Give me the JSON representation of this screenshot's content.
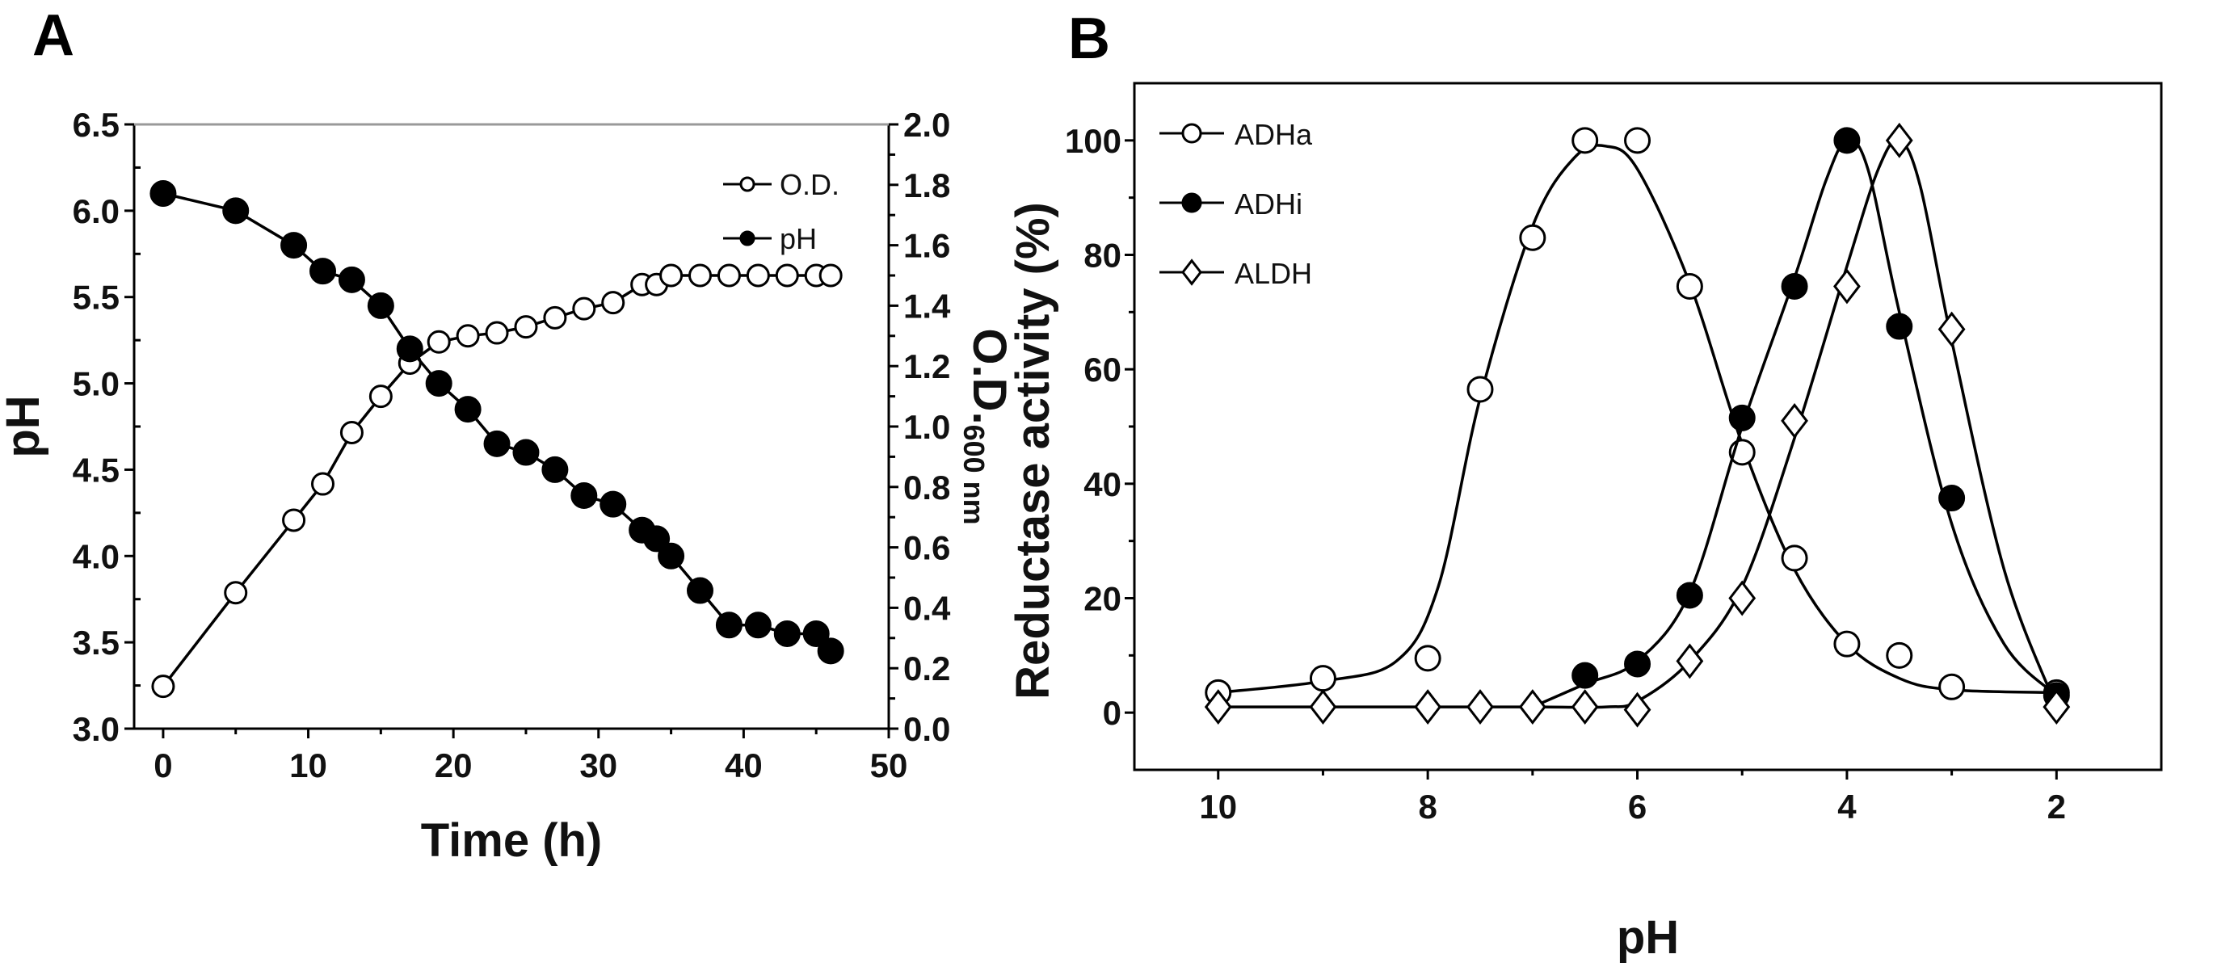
{
  "chart_data": [
    {
      "panel_label": "A",
      "type": "line",
      "xlabel": "Time (h)",
      "ylabel": "pH",
      "y2label": "O.D.",
      "y2label_sub": "600 nm",
      "xlim": [
        -2,
        50
      ],
      "ylim": [
        3.0,
        6.5
      ],
      "y2lim": [
        0.0,
        2.0
      ],
      "xticks": [
        "0",
        "10",
        "20",
        "30",
        "40",
        "50"
      ],
      "yticks": [
        "3.0",
        "3.5",
        "4.0",
        "4.5",
        "5.0",
        "5.5",
        "6.0",
        "6.5"
      ],
      "y2ticks": [
        "0.0",
        "0.2",
        "0.4",
        "0.6",
        "0.8",
        "1.0",
        "1.2",
        "1.4",
        "1.6",
        "1.8",
        "2.0"
      ],
      "legend_position": "top-right",
      "series": [
        {
          "name": "O.D.",
          "axis": "right",
          "marker": "open-circle",
          "x": [
            0,
            5,
            9,
            11,
            13,
            15,
            17,
            19,
            21,
            23,
            25,
            27,
            29,
            31,
            33,
            34,
            35,
            37,
            39,
            41,
            43,
            45,
            46
          ],
          "y": [
            0.14,
            0.45,
            0.69,
            0.81,
            0.98,
            1.1,
            1.21,
            1.28,
            1.3,
            1.31,
            1.33,
            1.36,
            1.39,
            1.41,
            1.47,
            1.47,
            1.5,
            1.5,
            1.5,
            1.5,
            1.5,
            1.5,
            1.5
          ]
        },
        {
          "name": "pH",
          "axis": "left",
          "marker": "filled-circle",
          "x": [
            0,
            5,
            9,
            11,
            13,
            15,
            17,
            19,
            21,
            23,
            25,
            27,
            29,
            31,
            33,
            34,
            35,
            37,
            39,
            41,
            43,
            45,
            46
          ],
          "y": [
            6.1,
            6.0,
            5.8,
            5.65,
            5.6,
            5.45,
            5.2,
            5.0,
            4.85,
            4.65,
            4.6,
            4.5,
            4.35,
            4.3,
            4.15,
            4.1,
            4.0,
            3.8,
            3.6,
            3.6,
            3.55,
            3.55,
            3.45
          ]
        }
      ]
    },
    {
      "panel_label": "B",
      "type": "line",
      "xlabel": "pH",
      "ylabel": "Reductase activity (%)",
      "xlim": [
        10.8,
        1.0
      ],
      "ylim": [
        -10,
        110
      ],
      "xticks": [
        "10",
        "8",
        "6",
        "4",
        "2"
      ],
      "yticks": [
        "0",
        "20",
        "40",
        "60",
        "80",
        "100"
      ],
      "legend_position": "top-left",
      "series": [
        {
          "name": "ADHa",
          "marker": "open-circle",
          "x": [
            10,
            9,
            8,
            7.5,
            7,
            6.5,
            6,
            5.5,
            5,
            4.5,
            4,
            3.5,
            3,
            2
          ],
          "y": [
            3.5,
            6,
            9.5,
            56.5,
            83,
            100,
            100,
            74.5,
            45.5,
            27,
            12,
            10,
            4.5,
            3.5
          ],
          "fit_x": [
            10,
            9,
            8.3,
            7.9,
            7.5,
            7.0,
            6.6,
            6.3,
            6.0,
            5.5,
            5.0,
            4.5,
            4.0,
            3.5,
            3.0,
            2.0
          ],
          "fit_y": [
            3.5,
            5.5,
            9,
            22,
            55,
            85,
            97,
            99,
            95,
            75,
            47,
            25,
            12,
            6,
            4,
            3.5
          ]
        },
        {
          "name": "ADHi",
          "marker": "filled-circle",
          "x": [
            6.5,
            6,
            5.5,
            5,
            4.5,
            4,
            3.5,
            3,
            2
          ],
          "y": [
            6.5,
            8.5,
            20.5,
            51.5,
            74.5,
            100,
            67.5,
            37.5,
            3
          ],
          "fit_x": [
            7.0,
            6.5,
            6.0,
            5.5,
            5.0,
            4.5,
            4.2,
            4.0,
            3.8,
            3.5,
            3.0,
            2.5,
            2.0
          ],
          "fit_y": [
            1,
            5,
            9,
            21,
            50,
            76,
            93,
            100,
            95,
            70,
            33,
            12,
            3
          ]
        },
        {
          "name": "ALDH",
          "marker": "open-diamond",
          "x": [
            10,
            9,
            8,
            7.5,
            7,
            6.5,
            6,
            5.5,
            5,
            4.5,
            4,
            3.5,
            3,
            2
          ],
          "y": [
            1,
            1,
            1,
            1,
            1,
            1,
            0.5,
            9,
            20,
            51,
            74.5,
            100,
            67,
            1
          ],
          "fit_x": [
            10,
            8,
            7,
            6.3,
            6.0,
            5.5,
            5.0,
            4.5,
            4.0,
            3.7,
            3.5,
            3.3,
            3.0,
            2.5,
            2.0
          ],
          "fit_y": [
            1,
            1,
            1,
            1,
            2,
            9,
            22,
            48,
            78,
            95,
            100,
            92,
            65,
            25,
            1
          ]
        }
      ]
    }
  ]
}
